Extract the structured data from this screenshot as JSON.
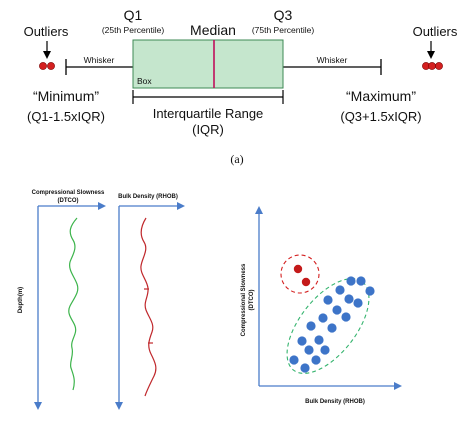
{
  "panel_a": {
    "outliers_left": "Outliers",
    "outliers_right": "Outliers",
    "q1": "Q1",
    "q1_sub": "(25th Percentile)",
    "median": "Median",
    "q3": "Q3",
    "q3_sub": "(75th Percentile)",
    "whisker_left": "Whisker",
    "whisker_right": "Whisker",
    "box": "Box",
    "minimum": "“Minimum”",
    "minimum_formula": "(Q1-1.5xIQR)",
    "maximum": "“Maximum”",
    "maximum_formula": "(Q3+1.5xIQR)",
    "iqr": "Interquartile Range",
    "iqr_abbr": "(IQR)",
    "caption": "(a)"
  },
  "panel_b": {
    "dtco_title_line1": "Compressional Slowness",
    "dtco_title_line2": "(DTCO)",
    "rhob_title": "Bulk Density (RHOB)",
    "depth_label": "Depth(m)",
    "scatter_ylabel_line1": "Compressional Slowness",
    "scatter_ylabel_line2": "(DTCO)",
    "scatter_xlabel": "Bulk Density (RHOB)"
  },
  "colors": {
    "box_fill": "#c5e6cd",
    "box_stroke": "#3e8a55",
    "median_line": "#c00f5c",
    "outlier_red": "#d42020",
    "axis_blue": "#4a7cc9",
    "dtco_curve": "#3cb44b",
    "rhob_curve": "#c0282c",
    "scatter_point": "#3d74c8",
    "cluster_ellipse": "#35b46e",
    "outlier_ellipse": "#d42020"
  }
}
